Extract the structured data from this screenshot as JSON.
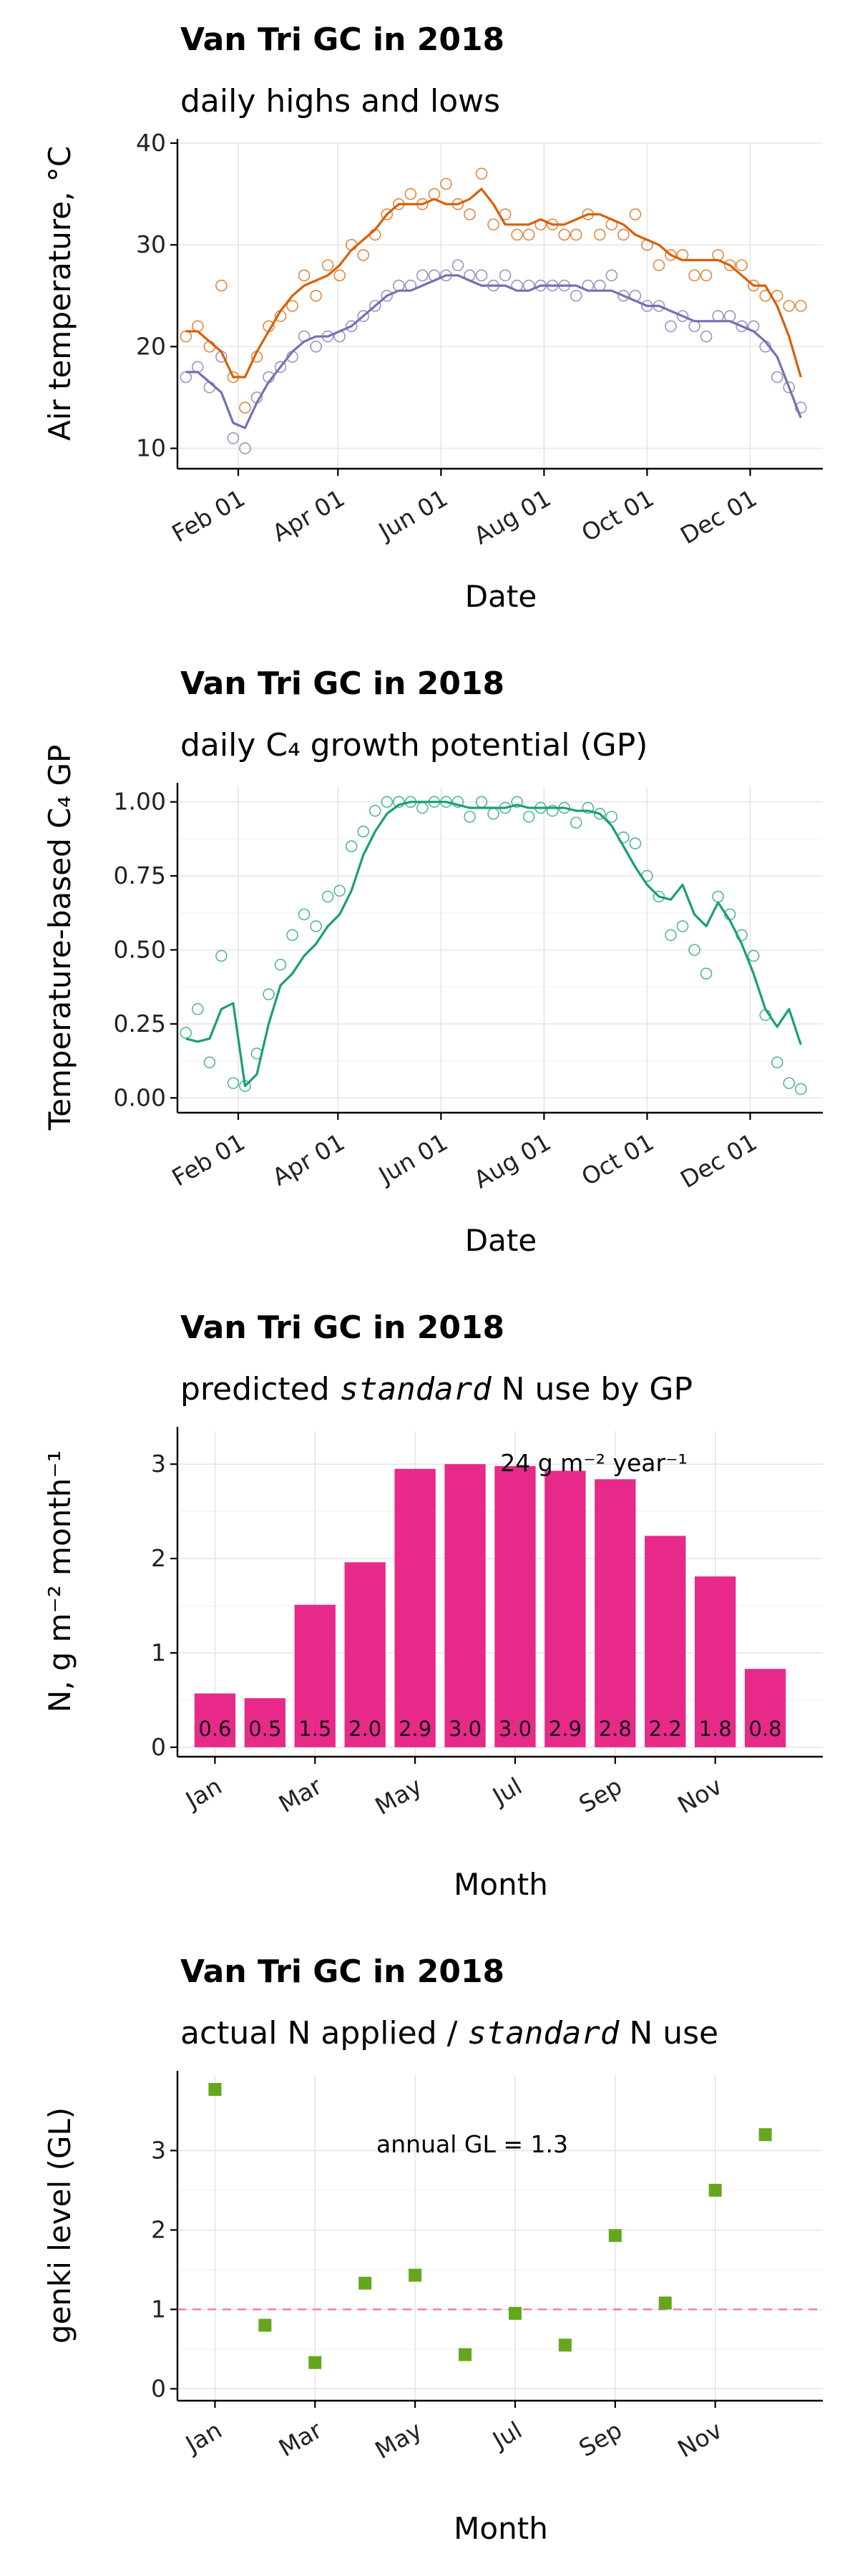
{
  "colors": {
    "high": "#d95f02",
    "low": "#7570b3",
    "gp": "#1b9e77",
    "bar": "#e7298a",
    "genki": "#66a61e",
    "ref_line": "#f07ab6"
  },
  "month_ticks": [
    "Jan",
    "Mar",
    "May",
    "Jul",
    "Sep",
    "Nov"
  ],
  "chart_data": [
    {
      "type": "scatter",
      "title": "Van Tri GC in 2018",
      "subtitle": "daily highs and lows",
      "xlabel": "Date",
      "ylabel": "Air temperature, °C",
      "x_ticks": [
        "Feb 01",
        "Apr 01",
        "Jun 01",
        "Aug 01",
        "Oct 01",
        "Dec 01"
      ],
      "x_tick_doy": [
        32,
        91,
        152,
        213,
        274,
        335
      ],
      "ylim": [
        8,
        40
      ],
      "y_ticks": [
        10,
        20,
        30,
        40
      ],
      "grid": true,
      "series": [
        {
          "name": "",
          "sample_every_days": 7,
          "start_doy": 1,
          "values": [
            21,
            22,
            20,
            26,
            17,
            14,
            19,
            22,
            23,
            24,
            27,
            25,
            28,
            27,
            30,
            29,
            31,
            33,
            34,
            35,
            34,
            35,
            36,
            34,
            33,
            37,
            32,
            33,
            31,
            31,
            32,
            32,
            31,
            31,
            33,
            31,
            32,
            31,
            33,
            30,
            28,
            29,
            29,
            27,
            27,
            29,
            28,
            28,
            26,
            25,
            25,
            24,
            24
          ],
          "smooth": [
            21.5,
            21.5,
            20.5,
            19.5,
            17,
            17,
            19.5,
            21.5,
            23.5,
            25,
            26,
            26.5,
            27,
            28,
            29.5,
            30.5,
            31.5,
            33,
            34,
            34,
            34,
            34.5,
            34,
            34,
            34.5,
            35.5,
            34,
            32,
            32,
            32,
            32.5,
            32,
            32,
            32.5,
            33,
            33,
            32.5,
            32,
            31,
            30.5,
            30,
            29,
            28.5,
            28.5,
            28.5,
            28.5,
            28,
            27,
            26,
            26,
            24,
            21,
            17
          ]
        },
        {
          "name": "",
          "sample_every_days": 7,
          "start_doy": 1,
          "values": [
            17,
            18,
            16,
            19,
            11,
            10,
            15,
            17,
            18,
            19,
            21,
            20,
            21,
            21,
            22,
            23,
            24,
            25,
            26,
            26,
            27,
            27,
            27,
            28,
            27,
            27,
            26,
            27,
            26,
            26,
            26,
            26,
            26,
            25,
            26,
            26,
            27,
            25,
            25,
            24,
            24,
            22,
            23,
            22,
            21,
            23,
            23,
            22,
            22,
            20,
            17,
            16,
            14
          ],
          "smooth": [
            17.5,
            17.5,
            16.5,
            15.5,
            12.5,
            12,
            14.5,
            16.5,
            18,
            19.5,
            20.5,
            21,
            21,
            21.5,
            22,
            23,
            24,
            25,
            25.5,
            25.5,
            26,
            26.5,
            27,
            27,
            26.5,
            26,
            26,
            26,
            25.5,
            25.5,
            26,
            26,
            26,
            26,
            25.5,
            25.5,
            25.5,
            25,
            24.5,
            24,
            24,
            23.5,
            23,
            22.5,
            22.5,
            22.5,
            22.5,
            22,
            21.5,
            20.5,
            19,
            16,
            13
          ]
        }
      ]
    },
    {
      "type": "scatter",
      "title": "Van Tri GC in 2018",
      "subtitle": "daily C₄ growth potential (GP)",
      "xlabel": "Date",
      "ylabel": "Temperature-based C₄ GP",
      "x_ticks": [
        "Feb 01",
        "Apr 01",
        "Jun 01",
        "Aug 01",
        "Oct 01",
        "Dec 01"
      ],
      "x_tick_doy": [
        32,
        91,
        152,
        213,
        274,
        335
      ],
      "ylim": [
        -0.05,
        1.05
      ],
      "y_ticks": [
        "0.00",
        "0.25",
        "0.50",
        "0.75",
        "1.00"
      ],
      "grid": true,
      "series": [
        {
          "name": "",
          "sample_every_days": 7,
          "start_doy": 1,
          "values": [
            0.22,
            0.3,
            0.12,
            0.48,
            0.05,
            0.04,
            0.15,
            0.35,
            0.45,
            0.55,
            0.62,
            0.58,
            0.68,
            0.7,
            0.85,
            0.9,
            0.97,
            1.0,
            1.0,
            1.0,
            0.98,
            1.0,
            1.0,
            1.0,
            0.95,
            1.0,
            0.96,
            0.98,
            1.0,
            0.95,
            0.98,
            0.97,
            0.98,
            0.93,
            0.98,
            0.96,
            0.95,
            0.88,
            0.86,
            0.75,
            0.68,
            0.55,
            0.58,
            0.5,
            0.42,
            0.68,
            0.62,
            0.55,
            0.48,
            0.28,
            0.12,
            0.05,
            0.03
          ],
          "smooth": [
            0.2,
            0.19,
            0.2,
            0.3,
            0.32,
            0.04,
            0.08,
            0.25,
            0.38,
            0.42,
            0.48,
            0.52,
            0.58,
            0.62,
            0.7,
            0.82,
            0.9,
            0.96,
            0.99,
            1.0,
            1.0,
            1.0,
            1.0,
            0.99,
            0.98,
            0.98,
            0.98,
            0.98,
            0.99,
            0.98,
            0.98,
            0.98,
            0.98,
            0.97,
            0.97,
            0.96,
            0.92,
            0.85,
            0.78,
            0.72,
            0.68,
            0.67,
            0.72,
            0.62,
            0.58,
            0.66,
            0.6,
            0.52,
            0.42,
            0.3,
            0.24,
            0.3,
            0.18
          ]
        }
      ]
    },
    {
      "type": "bar",
      "title": "Van Tri GC in 2018",
      "subtitle_parts": [
        "predicted ",
        "standard",
        " N use by GP"
      ],
      "xlabel": "Month",
      "ylabel": "N, g m⁻² month⁻¹",
      "categories": [
        "Jan",
        "Feb",
        "Mar",
        "Apr",
        "May",
        "Jun",
        "Jul",
        "Aug",
        "Sep",
        "Oct",
        "Nov",
        "Dec"
      ],
      "values": [
        0.57,
        0.52,
        1.51,
        1.96,
        2.95,
        3.0,
        2.98,
        2.93,
        2.84,
        2.24,
        1.81,
        0.83
      ],
      "data_labels": [
        "0.6",
        "0.5",
        "1.5",
        "2.0",
        "2.9",
        "3.0",
        "3.0",
        "2.9",
        "2.8",
        "2.2",
        "1.8",
        "0.8"
      ],
      "annotation": "24 g m⁻² year⁻¹",
      "ylim": [
        -0.1,
        3.35
      ],
      "y_ticks": [
        0,
        1,
        2,
        3
      ],
      "grid": true
    },
    {
      "type": "scatter",
      "title": "Van Tri GC in 2018",
      "subtitle_parts": [
        "actual N applied / ",
        "standard",
        " N use"
      ],
      "xlabel": "Month",
      "ylabel": "genki level (GL)",
      "categories": [
        "Jan",
        "Feb",
        "Mar",
        "Apr",
        "May",
        "Jun",
        "Jul",
        "Aug",
        "Sep",
        "Oct",
        "Nov",
        "Dec"
      ],
      "values": [
        3.77,
        0.8,
        0.33,
        1.33,
        1.43,
        0.43,
        0.95,
        0.55,
        1.93,
        1.08,
        2.5,
        3.2
      ],
      "reference_line": 1,
      "annotation": "annual GL = 1.3",
      "ylim": [
        -0.15,
        3.95
      ],
      "y_ticks": [
        0,
        1,
        2,
        3
      ],
      "grid": true
    }
  ]
}
